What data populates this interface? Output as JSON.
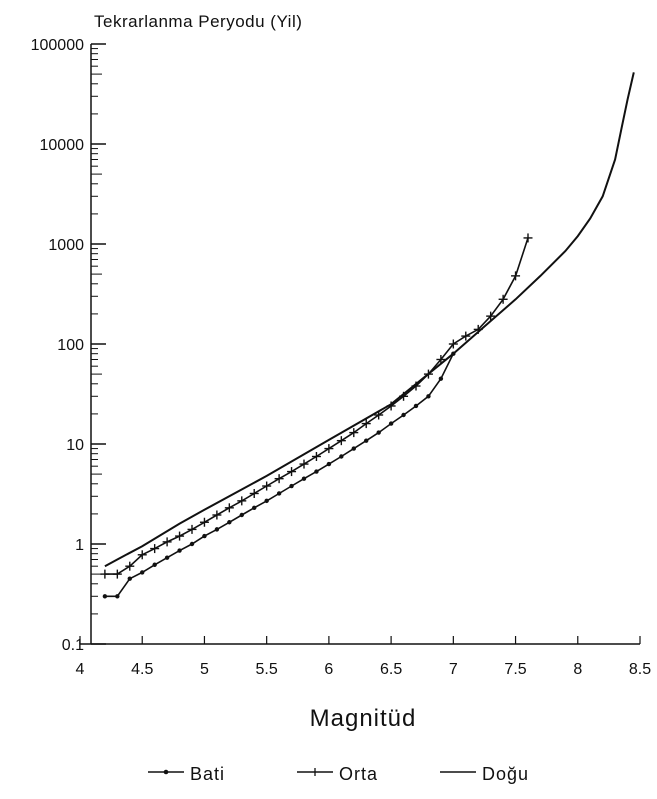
{
  "chart_data": {
    "type": "line",
    "title": "Tekrarlanma Peryodu (Yil)",
    "xlabel": "Magnitüd",
    "ylabel": "Tekrarlanma Peryodu (Yil)",
    "y_scale": "log",
    "xlim": [
      4,
      8.5
    ],
    "ylim": [
      0.1,
      100000
    ],
    "x_ticks": [
      "4",
      "4.5",
      "5",
      "5.5",
      "6",
      "6.5",
      "7",
      "7.5",
      "8",
      "8.5"
    ],
    "y_ticks": [
      "0.1",
      "1",
      "10",
      "100",
      "1000",
      "10000",
      "100000"
    ],
    "legend_position": "bottom",
    "series": [
      {
        "name": "Bati",
        "marker": "dot",
        "x": [
          4.2,
          4.3,
          4.4,
          4.5,
          4.6,
          4.7,
          4.8,
          4.9,
          5.0,
          5.1,
          5.2,
          5.3,
          5.4,
          5.5,
          5.6,
          5.7,
          5.8,
          5.9,
          6.0,
          6.1,
          6.2,
          6.3,
          6.4,
          6.5,
          6.6,
          6.7,
          6.8,
          6.9,
          7.0
        ],
        "y": [
          0.3,
          0.3,
          0.45,
          0.52,
          0.62,
          0.73,
          0.86,
          1.0,
          1.2,
          1.4,
          1.65,
          1.95,
          2.3,
          2.7,
          3.2,
          3.8,
          4.5,
          5.3,
          6.3,
          7.5,
          9.0,
          10.8,
          13.0,
          16.0,
          19.5,
          24.0,
          30.0,
          45.0,
          80.0
        ]
      },
      {
        "name": "Orta",
        "marker": "plus",
        "x": [
          4.2,
          4.3,
          4.4,
          4.5,
          4.6,
          4.7,
          4.8,
          4.9,
          5.0,
          5.1,
          5.2,
          5.3,
          5.4,
          5.5,
          5.6,
          5.7,
          5.8,
          5.9,
          6.0,
          6.1,
          6.2,
          6.3,
          6.4,
          6.5,
          6.6,
          6.7,
          6.8,
          6.9,
          7.0,
          7.1,
          7.2,
          7.3,
          7.4,
          7.5,
          7.6
        ],
        "y": [
          0.5,
          0.5,
          0.6,
          0.78,
          0.9,
          1.05,
          1.2,
          1.4,
          1.65,
          1.95,
          2.3,
          2.7,
          3.2,
          3.8,
          4.5,
          5.3,
          6.3,
          7.5,
          9.0,
          10.8,
          13.0,
          16.0,
          19.5,
          24.0,
          30.0,
          38.0,
          50.0,
          70.0,
          100.0,
          120.0,
          140.0,
          190.0,
          280.0,
          480.0,
          1150.0
        ]
      },
      {
        "name": "Doğu",
        "marker": "none",
        "x": [
          4.2,
          4.3,
          4.5,
          4.8,
          5.0,
          5.5,
          6.0,
          6.5,
          7.0,
          7.3,
          7.5,
          7.7,
          7.9,
          8.0,
          8.1,
          8.2,
          8.3,
          8.35,
          8.4,
          8.45
        ],
        "y": [
          0.6,
          0.7,
          0.95,
          1.6,
          2.2,
          4.8,
          11.0,
          25.0,
          80.0,
          170.0,
          280.0,
          480.0,
          850.0,
          1200.0,
          1800.0,
          3000.0,
          7000.0,
          14000.0,
          28000.0,
          52000.0
        ]
      }
    ]
  }
}
